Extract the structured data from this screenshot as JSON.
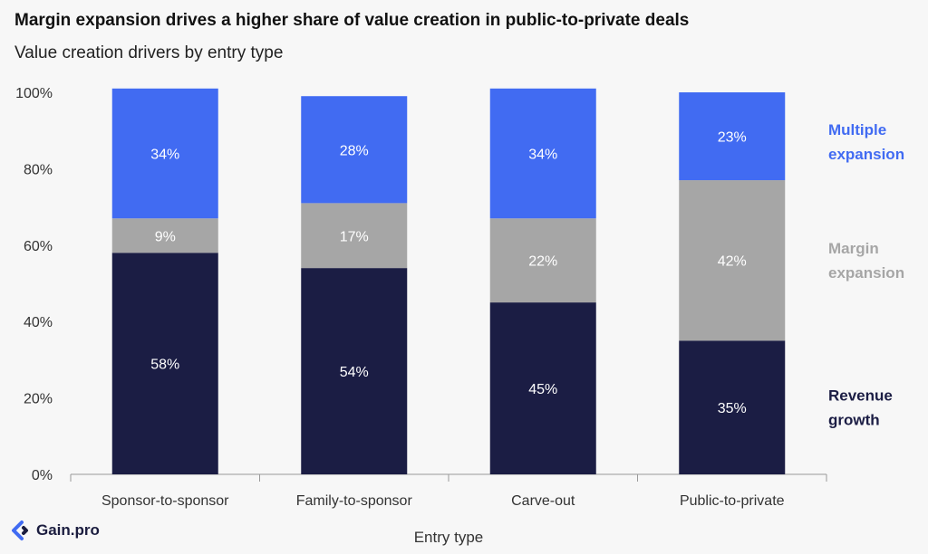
{
  "title": "Margin expansion drives a higher share of value creation in public-to-private deals",
  "subtitle": "Value creation drivers by entry type",
  "brand": {
    "name": "Gain.pro"
  },
  "chart_data": {
    "type": "bar",
    "stacked": true,
    "categories": [
      "Sponsor-to-sponsor",
      "Family-to-sponsor",
      "Carve-out",
      "Public-to-private"
    ],
    "series": [
      {
        "name": "Revenue growth",
        "values": [
          58,
          54,
          45,
          35
        ],
        "color": "#1b1d44",
        "label_color": "#1b1d44",
        "legend_lines": [
          "Revenue",
          "growth"
        ]
      },
      {
        "name": "Margin expansion",
        "values": [
          9,
          17,
          22,
          42
        ],
        "color": "#a6a6a6",
        "label_color": "#a6a6a6",
        "legend_lines": [
          "Margin",
          "expansion"
        ]
      },
      {
        "name": "Multiple expansion",
        "values": [
          34,
          28,
          34,
          23
        ],
        "color": "#416bf2",
        "label_color": "#416bf2",
        "legend_lines": [
          "Multiple",
          "expansion"
        ]
      }
    ],
    "xlabel": "Entry type",
    "ylabel": "",
    "ylim": [
      0,
      100
    ],
    "yticks": [
      "0%",
      "20%",
      "40%",
      "60%",
      "80%",
      "100%"
    ],
    "value_suffix": "%",
    "grid": false,
    "legend": "right"
  }
}
